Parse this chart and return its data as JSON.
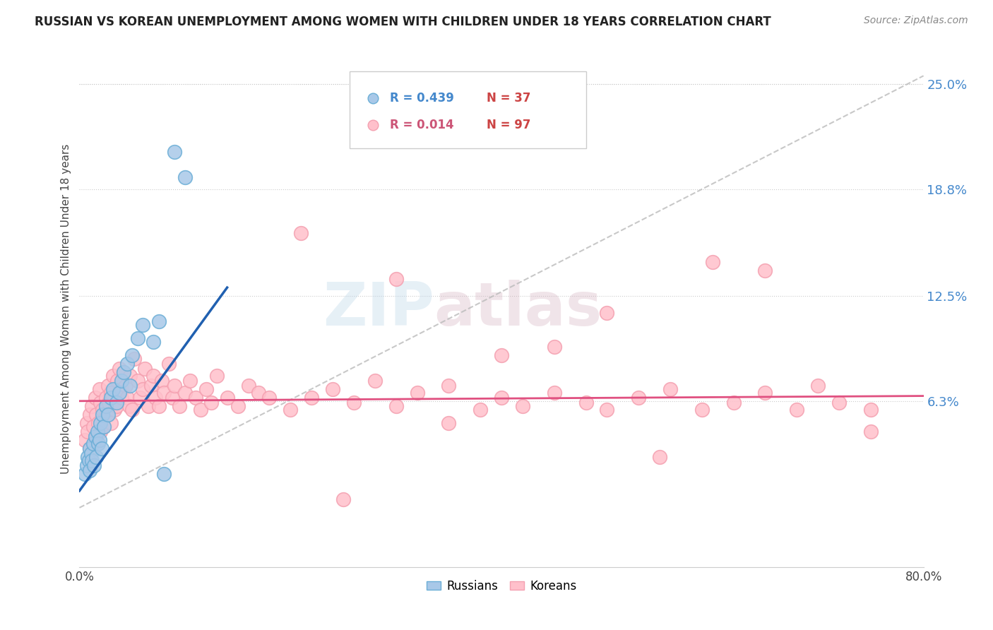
{
  "title": "RUSSIAN VS KOREAN UNEMPLOYMENT AMONG WOMEN WITH CHILDREN UNDER 18 YEARS CORRELATION CHART",
  "source": "Source: ZipAtlas.com",
  "ylabel": "Unemployment Among Women with Children Under 18 years",
  "xlim": [
    0.0,
    0.8
  ],
  "ylim": [
    -0.035,
    0.27
  ],
  "ytick_vals_right": [
    0.063,
    0.125,
    0.188,
    0.25
  ],
  "ytick_labels_right": [
    "6.3%",
    "12.5%",
    "18.8%",
    "25.0%"
  ],
  "russian_color": "#a8c8e8",
  "russian_edge": "#6baed6",
  "korean_color": "#ffc0cb",
  "korean_edge": "#f4a0b0",
  "russian_line_color": "#2060b0",
  "korean_line_color": "#e05080",
  "ref_line_color": "#bbbbbb",
  "watermark_color": "#c8dff0",
  "background_color": "#ffffff",
  "russians_x": [
    0.005,
    0.007,
    0.008,
    0.009,
    0.01,
    0.01,
    0.011,
    0.012,
    0.013,
    0.014,
    0.015,
    0.016,
    0.017,
    0.018,
    0.019,
    0.02,
    0.021,
    0.022,
    0.023,
    0.025,
    0.027,
    0.03,
    0.032,
    0.035,
    0.038,
    0.04,
    0.042,
    0.045,
    0.048,
    0.05,
    0.055,
    0.06,
    0.07,
    0.075,
    0.08,
    0.09,
    0.1
  ],
  "russians_y": [
    0.02,
    0.025,
    0.03,
    0.028,
    0.035,
    0.022,
    0.032,
    0.028,
    0.038,
    0.025,
    0.042,
    0.03,
    0.045,
    0.038,
    0.04,
    0.05,
    0.035,
    0.055,
    0.048,
    0.06,
    0.055,
    0.065,
    0.07,
    0.062,
    0.068,
    0.075,
    0.08,
    0.085,
    0.072,
    0.09,
    0.1,
    0.108,
    0.098,
    0.11,
    0.02,
    0.21,
    0.195
  ],
  "koreans_x": [
    0.005,
    0.007,
    0.008,
    0.01,
    0.01,
    0.012,
    0.013,
    0.015,
    0.015,
    0.016,
    0.018,
    0.019,
    0.02,
    0.02,
    0.022,
    0.023,
    0.025,
    0.026,
    0.027,
    0.028,
    0.03,
    0.03,
    0.032,
    0.033,
    0.035,
    0.036,
    0.038,
    0.04,
    0.04,
    0.042,
    0.044,
    0.045,
    0.047,
    0.048,
    0.05,
    0.052,
    0.055,
    0.057,
    0.06,
    0.062,
    0.065,
    0.068,
    0.07,
    0.072,
    0.075,
    0.078,
    0.08,
    0.085,
    0.088,
    0.09,
    0.095,
    0.1,
    0.105,
    0.11,
    0.115,
    0.12,
    0.125,
    0.13,
    0.14,
    0.15,
    0.16,
    0.17,
    0.18,
    0.2,
    0.21,
    0.22,
    0.24,
    0.26,
    0.28,
    0.3,
    0.32,
    0.35,
    0.38,
    0.4,
    0.42,
    0.45,
    0.48,
    0.5,
    0.53,
    0.56,
    0.59,
    0.62,
    0.65,
    0.68,
    0.7,
    0.72,
    0.75,
    0.6,
    0.4,
    0.3,
    0.5,
    0.35,
    0.45,
    0.55,
    0.25,
    0.65,
    0.75
  ],
  "koreans_y": [
    0.04,
    0.05,
    0.045,
    0.055,
    0.035,
    0.06,
    0.048,
    0.04,
    0.065,
    0.055,
    0.05,
    0.07,
    0.045,
    0.062,
    0.058,
    0.048,
    0.065,
    0.055,
    0.072,
    0.062,
    0.05,
    0.068,
    0.078,
    0.058,
    0.06,
    0.075,
    0.082,
    0.065,
    0.07,
    0.08,
    0.072,
    0.065,
    0.06,
    0.078,
    0.058,
    0.088,
    0.075,
    0.065,
    0.07,
    0.082,
    0.06,
    0.072,
    0.078,
    0.065,
    0.06,
    0.075,
    0.068,
    0.085,
    0.065,
    0.072,
    0.06,
    0.068,
    0.075,
    0.065,
    0.058,
    0.07,
    0.062,
    0.078,
    0.065,
    0.06,
    0.072,
    0.068,
    0.065,
    0.058,
    0.162,
    0.065,
    0.07,
    0.062,
    0.075,
    0.06,
    0.068,
    0.072,
    0.058,
    0.065,
    0.06,
    0.068,
    0.062,
    0.058,
    0.065,
    0.07,
    0.058,
    0.062,
    0.068,
    0.058,
    0.072,
    0.062,
    0.058,
    0.145,
    0.09,
    0.135,
    0.115,
    0.05,
    0.095,
    0.03,
    0.005,
    0.14,
    0.045
  ],
  "rus_line_x": [
    0.0,
    0.14
  ],
  "rus_line_y": [
    0.01,
    0.13
  ],
  "kor_line_x": [
    0.0,
    0.8
  ],
  "kor_line_y": [
    0.063,
    0.066
  ]
}
